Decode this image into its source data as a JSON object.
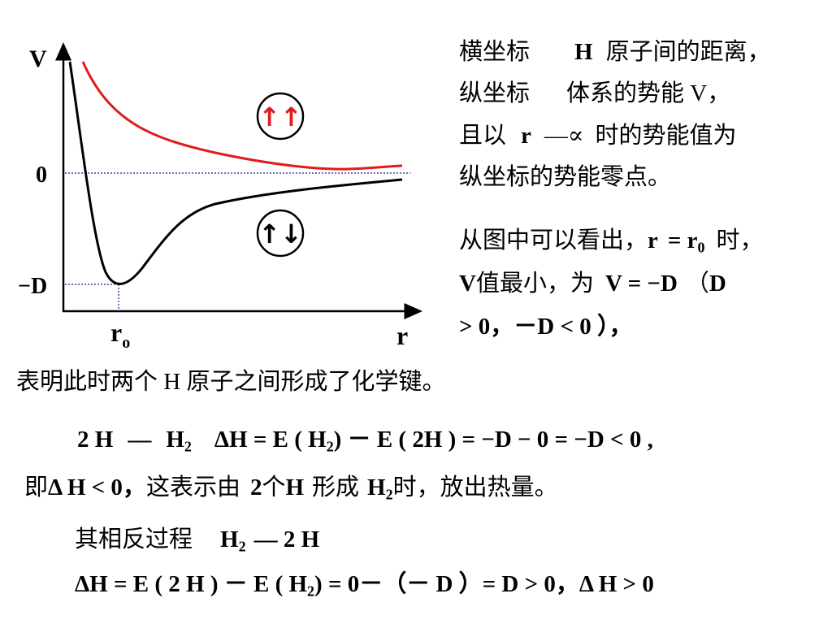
{
  "diagram": {
    "axis_v_label": "V",
    "axis_r_label": "r",
    "zero_label": "0",
    "minus_d_label": "−D",
    "r0_main": "r",
    "r0_sub": "o",
    "parallel_spin_label": "↑↑",
    "antiparallel_spin_label": "↑↓",
    "colors": {
      "repulsive": "#e01b1b",
      "bonding": "#000000",
      "guide": "#1a1a8c"
    }
  },
  "right_text": {
    "line1_a": "横坐标",
    "line1_b": "H",
    "line1_c": "原子间的距离，",
    "line2_a": "纵坐标",
    "line2_b": "体系的势能 V，",
    "line3_a": "且以",
    "line3_b": "r",
    "line3_c": "—∝",
    "line3_d": "时的势能值为",
    "line4": "纵坐标的势能零点。",
    "line5_a": "从图中可以看出，",
    "line5_b": "r",
    "line5_c": "= r",
    "line5_sub": "0",
    "line5_d": "时，",
    "line6_a": "V",
    "line6_b": "值最小，为",
    "line6_c": "V = −D",
    "line6_d": "（",
    "line6_e": "D",
    "line7": "> 0，－D < 0 ），"
  },
  "bottom_text": {
    "line1": "表明此时两个 H 原子之间形成了化学键。",
    "eq1_a": "2 H",
    "eq1_b": "—",
    "eq1_c": "H",
    "eq1_c_sub": "2",
    "eq1_d": "ΔH = E ( H",
    "eq1_d_sub": "2",
    "eq1_e": ") － E ( 2H ) = −D − 0 = −D < 0 ,",
    "line2_a": "即",
    "line2_b": "Δ H < 0，",
    "line2_c": "这表示由",
    "line2_d": "2",
    "line2_e": "个",
    "line2_f": "H",
    "line2_g": "形成",
    "line2_h": "H",
    "line2_h_sub": "2",
    "line2_i": "时，放出热量。",
    "rev_a": "其相反过程",
    "rev_b": "H",
    "rev_b_sub": "2",
    "rev_c": "— 2 H",
    "eq2_a": "ΔH = E ( 2 H ) － E ( H",
    "eq2_a_sub": "2",
    "eq2_b": ") = 0－（－ D ）= D > 0，",
    "eq2_c": "Δ H > 0"
  }
}
